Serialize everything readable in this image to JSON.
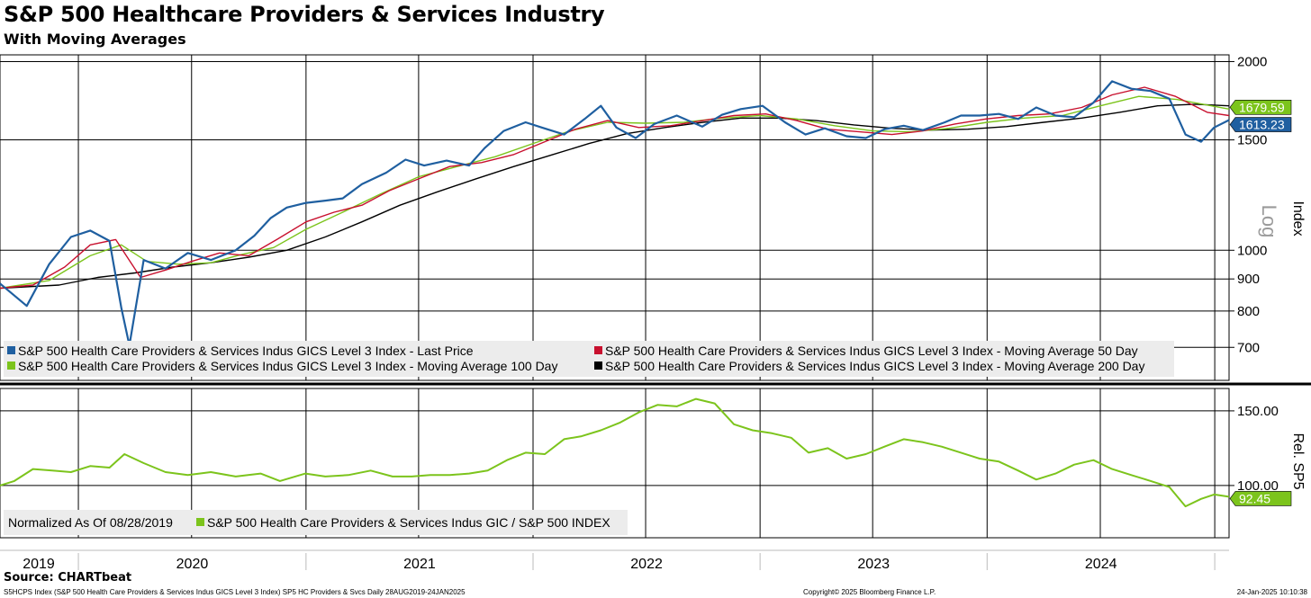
{
  "header": {
    "title": "S&P 500 Healthcare Providers & Services Industry",
    "subtitle": "With Moving Averages"
  },
  "footer": {
    "source": "Source: CHARTbeat",
    "ticker_line": "S5HCPS Index (S&P 500 Health Care Providers & Services Indus GICS Level 3 Index) SP5 HC Providers & Svcs  Daily 28AUG2019-24JAN2025",
    "copyright": "Copyright© 2025 Bloomberg Finance L.P.",
    "timestamp": "24-Jan-2025 10:10:38"
  },
  "colors": {
    "last_price": "#1f5fa0",
    "ma50": "#c8102e",
    "ma100": "#7cc41c",
    "ma200": "#000000",
    "relative": "#7cc41c",
    "grid": "#000000",
    "legend_bg": "#ececec"
  },
  "chart_data": [
    {
      "type": "line",
      "panel": "upper",
      "scale": "log",
      "ylabel": "Index",
      "scale_label": "Log",
      "ylim": [
        620,
        2050
      ],
      "yticks": [
        700,
        800,
        900,
        1000,
        1500,
        2000
      ],
      "grid": true,
      "legend": [
        "S&P 500 Health Care Providers & Services Indus GICS Level 3 Index - Last Price",
        "S&P 500 Health Care Providers & Services Indus GICS Level 3 Index - Moving Average 50 Day",
        "S&P 500 Health Care Providers & Services Indus GICS Level 3 Index - Moving Average 100 Day",
        "S&P 500 Health Care Providers & Services Indus GICS Level 3 Index - Moving Average 200 Day"
      ],
      "last_values": {
        "ma100": "1679.59",
        "last_price": "1613.23"
      },
      "series": [
        {
          "key": "last_price",
          "x": [
            "2019-08-28",
            "2019-10-10",
            "2019-11-15",
            "2019-12-20",
            "2020-01-20",
            "2020-02-20",
            "2020-03-10",
            "2020-03-23",
            "2020-04-15",
            "2020-05-20",
            "2020-06-25",
            "2020-08-01",
            "2020-09-10",
            "2020-10-10",
            "2020-11-05",
            "2020-12-01",
            "2021-01-01",
            "2021-02-01",
            "2021-03-01",
            "2021-04-01",
            "2021-05-10",
            "2021-06-10",
            "2021-07-10",
            "2021-08-15",
            "2021-09-20",
            "2021-10-15",
            "2021-11-15",
            "2021-12-20",
            "2022-01-15",
            "2022-02-20",
            "2022-03-25",
            "2022-04-20",
            "2022-05-15",
            "2022-06-15",
            "2022-07-15",
            "2022-08-20",
            "2022-09-30",
            "2022-11-01",
            "2022-12-01",
            "2023-01-05",
            "2023-02-10",
            "2023-03-15",
            "2023-04-15",
            "2023-05-20",
            "2023-06-20",
            "2023-07-20",
            "2023-08-20",
            "2023-09-20",
            "2023-10-25",
            "2023-11-20",
            "2023-12-20",
            "2024-01-20",
            "2024-02-20",
            "2024-03-20",
            "2024-04-20",
            "2024-05-20",
            "2024-06-20",
            "2024-07-20",
            "2024-08-20",
            "2024-09-20",
            "2024-10-20",
            "2024-11-15",
            "2024-12-10",
            "2024-12-31",
            "2025-01-24"
          ],
          "y": [
            885,
            815,
            950,
            1050,
            1075,
            1035,
            810,
            705,
            965,
            935,
            990,
            965,
            1000,
            1055,
            1125,
            1170,
            1190,
            1200,
            1210,
            1275,
            1330,
            1395,
            1365,
            1390,
            1365,
            1455,
            1550,
            1600,
            1570,
            1530,
            1620,
            1700,
            1570,
            1510,
            1590,
            1640,
            1575,
            1645,
            1680,
            1700,
            1600,
            1530,
            1565,
            1520,
            1510,
            1560,
            1580,
            1555,
            1600,
            1640,
            1640,
            1650,
            1620,
            1690,
            1640,
            1630,
            1720,
            1860,
            1810,
            1795,
            1745,
            1530,
            1490,
            1570,
            1613.23
          ]
        },
        {
          "key": "ma50",
          "x": [
            "2019-08-28",
            "2019-10-20",
            "2019-12-10",
            "2020-01-20",
            "2020-03-01",
            "2020-04-10",
            "2020-05-20",
            "2020-07-01",
            "2020-08-15",
            "2020-10-01",
            "2020-11-15",
            "2021-01-01",
            "2021-02-15",
            "2021-04-01",
            "2021-05-15",
            "2021-07-01",
            "2021-08-20",
            "2021-10-10",
            "2021-11-30",
            "2022-01-20",
            "2022-03-10",
            "2022-05-01",
            "2022-06-20",
            "2022-08-10",
            "2022-10-01",
            "2022-11-20",
            "2023-01-10",
            "2023-03-01",
            "2023-04-20",
            "2023-06-10",
            "2023-08-01",
            "2023-09-20",
            "2023-11-10",
            "2023-12-30",
            "2024-02-20",
            "2024-04-10",
            "2024-06-01",
            "2024-07-20",
            "2024-09-10",
            "2024-10-30",
            "2024-12-20",
            "2025-01-24"
          ],
          "y": [
            870,
            880,
            940,
            1020,
            1040,
            905,
            930,
            960,
            990,
            980,
            1040,
            1110,
            1150,
            1180,
            1245,
            1300,
            1360,
            1380,
            1420,
            1490,
            1560,
            1610,
            1570,
            1580,
            1610,
            1640,
            1650,
            1610,
            1560,
            1545,
            1530,
            1550,
            1590,
            1620,
            1640,
            1650,
            1690,
            1770,
            1820,
            1760,
            1660,
            1640
          ]
        },
        {
          "key": "ma100",
          "x": [
            "2019-08-28",
            "2019-11-15",
            "2020-01-20",
            "2020-03-10",
            "2020-04-20",
            "2020-06-10",
            "2020-08-01",
            "2020-09-20",
            "2020-11-10",
            "2021-01-01",
            "2021-03-01",
            "2021-05-01",
            "2021-07-01",
            "2021-09-01",
            "2021-11-01",
            "2022-01-01",
            "2022-03-01",
            "2022-05-01",
            "2022-07-01",
            "2022-09-01",
            "2022-11-01",
            "2023-01-01",
            "2023-03-01",
            "2023-05-01",
            "2023-07-01",
            "2023-09-01",
            "2023-11-01",
            "2024-01-01",
            "2024-03-01",
            "2024-05-01",
            "2024-07-01",
            "2024-09-01",
            "2024-11-01",
            "2025-01-24"
          ],
          "y": [
            870,
            895,
            980,
            1020,
            960,
            950,
            955,
            985,
            1010,
            1080,
            1150,
            1230,
            1310,
            1360,
            1410,
            1480,
            1550,
            1600,
            1595,
            1600,
            1625,
            1640,
            1620,
            1580,
            1550,
            1545,
            1565,
            1600,
            1625,
            1640,
            1700,
            1760,
            1740,
            1679.59
          ]
        },
        {
          "key": "ma200",
          "x": [
            "2019-08-28",
            "2019-12-01",
            "2020-02-01",
            "2020-04-01",
            "2020-06-01",
            "2020-08-01",
            "2020-10-01",
            "2020-12-01",
            "2021-02-01",
            "2021-04-01",
            "2021-06-01",
            "2021-08-01",
            "2021-10-01",
            "2021-12-01",
            "2022-02-01",
            "2022-04-01",
            "2022-06-01",
            "2022-08-01",
            "2022-10-01",
            "2022-12-01",
            "2023-02-01",
            "2023-04-01",
            "2023-06-01",
            "2023-08-01",
            "2023-10-01",
            "2023-12-01",
            "2024-02-01",
            "2024-04-01",
            "2024-06-01",
            "2024-08-01",
            "2024-10-01",
            "2024-12-01",
            "2025-01-24"
          ],
          "y": [
            870,
            880,
            905,
            920,
            940,
            955,
            975,
            1000,
            1050,
            1110,
            1180,
            1240,
            1300,
            1360,
            1420,
            1480,
            1535,
            1570,
            1600,
            1625,
            1625,
            1610,
            1585,
            1565,
            1555,
            1560,
            1575,
            1600,
            1625,
            1660,
            1700,
            1710,
            1700
          ]
        }
      ]
    },
    {
      "type": "line",
      "panel": "lower",
      "ylabel": "Rel. SP5",
      "ylim": [
        65,
        165
      ],
      "yticks": [
        100,
        150
      ],
      "ytick_labels": [
        "100.00",
        "150.00"
      ],
      "grid": true,
      "legend": [
        "Normalized As Of 08/28/2019",
        "S&P 500 Health Care Providers & Services Indus GIC / S&P 500 INDEX"
      ],
      "last_value": "92.45",
      "series": [
        {
          "key": "relative",
          "x": [
            "2019-08-28",
            "2019-09-20",
            "2019-10-20",
            "2019-11-20",
            "2019-12-20",
            "2020-01-20",
            "2020-02-20",
            "2020-03-15",
            "2020-04-15",
            "2020-05-20",
            "2020-06-25",
            "2020-08-01",
            "2020-09-10",
            "2020-10-20",
            "2020-11-20",
            "2020-12-31",
            "2021-02-01",
            "2021-03-10",
            "2021-04-15",
            "2021-05-20",
            "2021-06-20",
            "2021-07-20",
            "2021-08-20",
            "2021-09-20",
            "2021-10-20",
            "2021-11-20",
            "2021-12-20",
            "2022-01-20",
            "2022-02-20",
            "2022-03-20",
            "2022-04-20",
            "2022-05-20",
            "2022-06-20",
            "2022-07-20",
            "2022-08-20",
            "2022-09-20",
            "2022-10-20",
            "2022-11-20",
            "2022-12-20",
            "2023-01-20",
            "2023-02-20",
            "2023-03-20",
            "2023-04-20",
            "2023-05-20",
            "2023-06-20",
            "2023-07-20",
            "2023-08-20",
            "2023-09-20",
            "2023-10-20",
            "2023-11-20",
            "2023-12-20",
            "2024-01-20",
            "2024-02-20",
            "2024-03-20",
            "2024-04-20",
            "2024-05-20",
            "2024-06-20",
            "2024-07-20",
            "2024-08-20",
            "2024-09-20",
            "2024-10-20",
            "2024-11-15",
            "2024-12-10",
            "2024-12-31",
            "2025-01-24"
          ],
          "y": [
            100,
            103,
            111,
            110,
            109,
            113,
            112,
            121,
            115,
            109,
            107,
            109,
            106,
            108,
            103,
            108,
            106,
            107,
            110,
            106,
            106,
            107,
            107,
            108,
            110,
            117,
            122,
            121,
            131,
            133,
            137,
            142,
            149,
            154,
            153,
            158,
            155,
            141,
            137,
            135,
            132,
            122,
            125,
            118,
            121,
            126,
            131,
            129,
            126,
            122,
            118,
            116,
            110,
            104,
            108,
            114,
            117,
            111,
            107,
            103,
            99,
            86,
            91,
            94,
            92.45
          ]
        }
      ]
    }
  ],
  "x_axis": {
    "year_labels": [
      "2019",
      "2020",
      "2021",
      "2022",
      "2023",
      "2024"
    ]
  }
}
